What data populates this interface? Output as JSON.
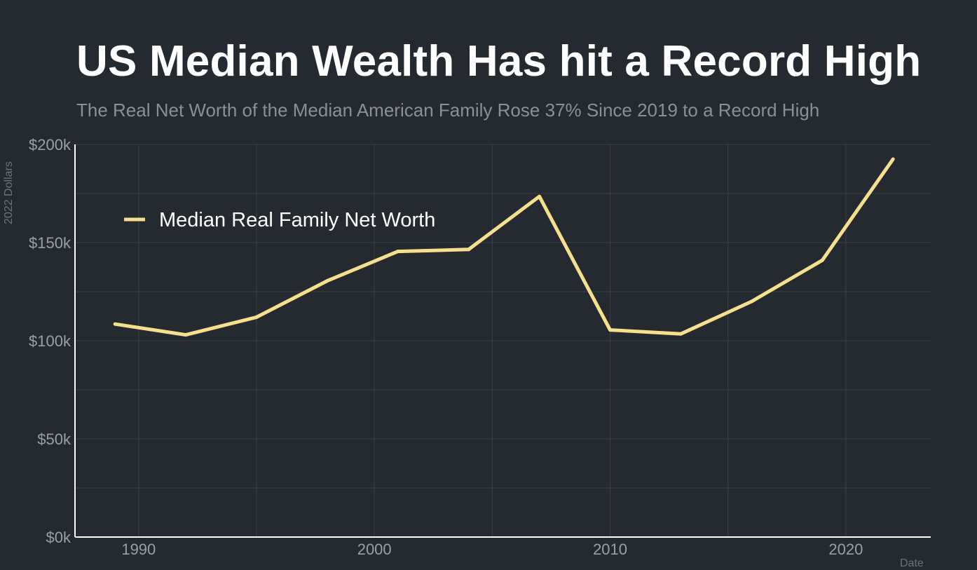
{
  "chart_data": {
    "type": "line",
    "title": "US Median Wealth Has hit a Record High",
    "subtitle": "The Real Net Worth of the Median American Family Rose 37% Since 2019 to a Record High",
    "xlabel": "Date",
    "ylabel": "2022 Dollars",
    "xlim": [
      1987.3,
      2023.6
    ],
    "ylim": [
      0,
      200000
    ],
    "x_ticks": [
      1990,
      2000,
      2010,
      2020
    ],
    "x_tick_labels": [
      "1990",
      "2000",
      "2010",
      "2020"
    ],
    "y_ticks": [
      0,
      50000,
      100000,
      150000,
      200000
    ],
    "y_tick_labels": [
      "$0k",
      "$50k",
      "$100k",
      "$150k",
      "$200k"
    ],
    "grid": true,
    "legend_position": "top-left",
    "series": [
      {
        "name": "Median Real Family Net Worth",
        "color": "#f5e08e",
        "x": [
          1989,
          1992,
          1995,
          1998,
          2001,
          2004,
          2007,
          2010,
          2013,
          2016,
          2019,
          2022
        ],
        "y": [
          108500,
          103000,
          112000,
          130500,
          145500,
          146500,
          173500,
          105500,
          103500,
          120000,
          141000,
          192500
        ]
      }
    ]
  }
}
